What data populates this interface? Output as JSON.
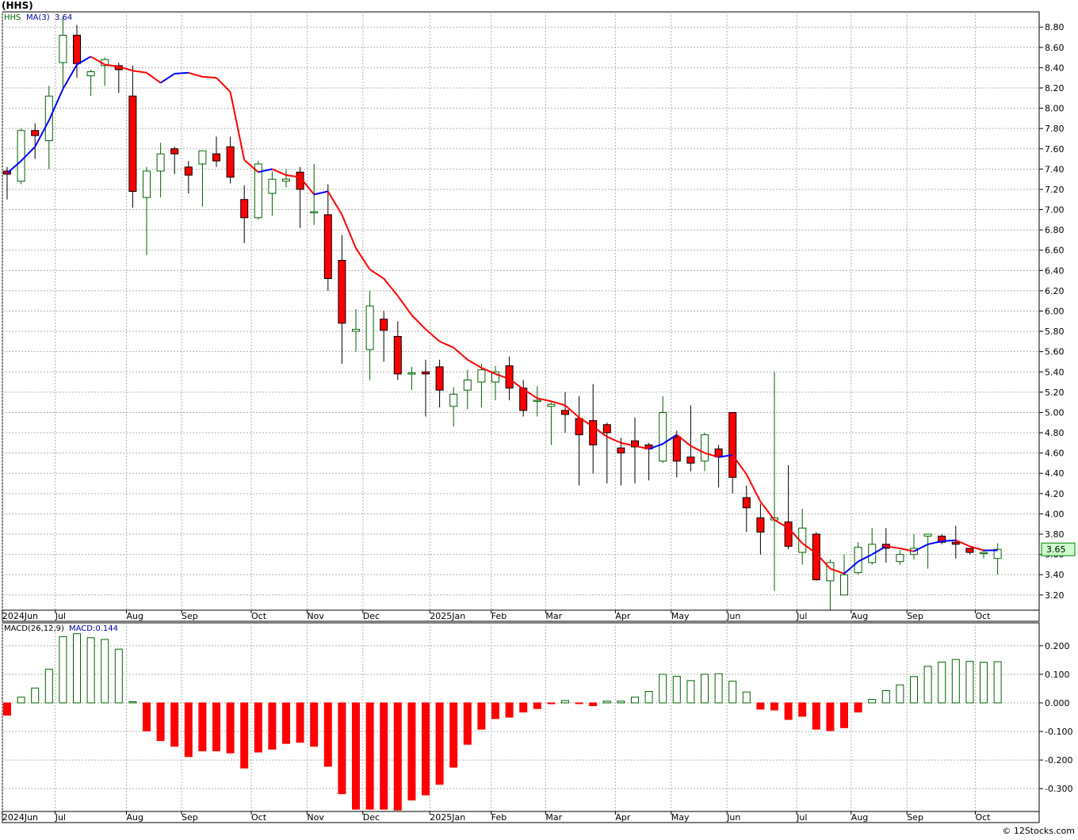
{
  "header": {
    "symbol_title": "(HHS)"
  },
  "footer": {
    "credit": "© 12Stocks.com"
  },
  "colors": {
    "up": "#006400",
    "down": "#ff0000",
    "ma_up": "#0000ff",
    "ma_down": "#ff0000",
    "grid": "#b0b0b0",
    "price_box": "#ccffcc"
  },
  "chart_data": [
    {
      "type": "candlestick",
      "legend": {
        "symbol": "HHS",
        "ma_label": "MA(3)",
        "ma_value": "3.64"
      },
      "last_price_label": "3.65",
      "ylim": [
        3.05,
        8.95
      ],
      "y_ticks": [
        3.2,
        3.4,
        3.6,
        3.8,
        4.0,
        4.2,
        4.4,
        4.6,
        4.8,
        5.0,
        5.2,
        5.4,
        5.6,
        5.8,
        6.0,
        6.2,
        6.4,
        6.6,
        6.8,
        7.0,
        7.2,
        7.4,
        7.6,
        7.8,
        8.0,
        8.2,
        8.4,
        8.6,
        8.8
      ],
      "x_labels": [
        {
          "label": "2024Jun",
          "index": -0.35
        },
        {
          "label": "Jul",
          "index": 3.45
        },
        {
          "label": "Aug",
          "index": 8.55
        },
        {
          "label": "Sep",
          "index": 12.5
        },
        {
          "label": "Oct",
          "index": 17.5
        },
        {
          "label": "Nov",
          "index": 21.5
        },
        {
          "label": "Dec",
          "index": 25.5
        },
        {
          "label": "2025Jan",
          "index": 30.3
        },
        {
          "label": "Feb",
          "index": 34.7
        },
        {
          "label": "Mar",
          "index": 38.6
        },
        {
          "label": "Apr",
          "index": 43.6
        },
        {
          "label": "May",
          "index": 47.6
        },
        {
          "label": "Jun",
          "index": 51.6
        },
        {
          "label": "Jul",
          "index": 56.6
        },
        {
          "label": "Aug",
          "index": 60.5
        },
        {
          "label": "Sep",
          "index": 64.5
        },
        {
          "label": "Oct",
          "index": 69.4
        }
      ],
      "ohlc": [
        [
          7.38,
          7.42,
          7.1,
          7.35
        ],
        [
          7.28,
          7.8,
          7.25,
          7.78
        ],
        [
          7.78,
          7.85,
          7.5,
          7.73
        ],
        [
          7.68,
          8.22,
          7.4,
          8.12
        ],
        [
          8.45,
          8.9,
          8.2,
          8.72
        ],
        [
          8.72,
          8.82,
          8.3,
          8.44
        ],
        [
          8.32,
          8.38,
          8.12,
          8.36
        ],
        [
          8.42,
          8.5,
          8.22,
          8.48
        ],
        [
          8.42,
          8.45,
          8.15,
          8.38
        ],
        [
          8.12,
          8.42,
          7.02,
          7.18
        ],
        [
          7.12,
          7.42,
          6.55,
          7.38
        ],
        [
          7.38,
          7.66,
          7.12,
          7.55
        ],
        [
          7.6,
          7.62,
          7.35,
          7.55
        ],
        [
          7.42,
          7.48,
          7.16,
          7.34
        ],
        [
          7.45,
          7.58,
          7.03,
          7.58
        ],
        [
          7.55,
          7.72,
          7.42,
          7.48
        ],
        [
          7.62,
          7.72,
          7.26,
          7.32
        ],
        [
          7.1,
          7.24,
          6.67,
          6.92
        ],
        [
          6.92,
          7.48,
          6.9,
          7.45
        ],
        [
          7.16,
          7.38,
          6.94,
          7.3
        ],
        [
          7.28,
          7.4,
          7.22,
          7.3
        ],
        [
          7.37,
          7.42,
          6.82,
          7.2
        ],
        [
          6.98,
          7.45,
          6.85,
          6.98
        ],
        [
          6.95,
          7.25,
          6.2,
          6.32
        ],
        [
          6.5,
          6.75,
          5.48,
          5.88
        ],
        [
          5.8,
          6.02,
          5.6,
          5.82
        ],
        [
          5.62,
          6.2,
          5.32,
          6.05
        ],
        [
          5.92,
          6.0,
          5.5,
          5.81
        ],
        [
          5.75,
          5.9,
          5.32,
          5.38
        ],
        [
          5.38,
          5.45,
          5.22,
          5.39
        ],
        [
          5.4,
          5.52,
          4.96,
          5.38
        ],
        [
          5.45,
          5.52,
          5.05,
          5.22
        ],
        [
          5.06,
          5.25,
          4.86,
          5.18
        ],
        [
          5.22,
          5.42,
          5.03,
          5.32
        ],
        [
          5.3,
          5.48,
          5.05,
          5.42
        ],
        [
          5.3,
          5.46,
          5.12,
          5.4
        ],
        [
          5.46,
          5.55,
          5.12,
          5.24
        ],
        [
          5.24,
          5.32,
          4.96,
          5.02
        ],
        [
          5.12,
          5.26,
          4.96,
          5.12
        ],
        [
          5.06,
          5.1,
          4.68,
          5.08
        ],
        [
          5.02,
          5.2,
          4.8,
          4.98
        ],
        [
          4.94,
          5.16,
          4.28,
          4.78
        ],
        [
          4.92,
          5.28,
          4.4,
          4.68
        ],
        [
          4.88,
          4.9,
          4.3,
          4.8
        ],
        [
          4.65,
          4.75,
          4.28,
          4.6
        ],
        [
          4.72,
          4.95,
          4.3,
          4.66
        ],
        [
          4.68,
          4.7,
          4.33,
          4.64
        ],
        [
          4.52,
          5.16,
          4.5,
          5.0
        ],
        [
          4.76,
          4.82,
          4.36,
          4.52
        ],
        [
          4.56,
          5.07,
          4.42,
          4.5
        ],
        [
          4.52,
          4.8,
          4.42,
          4.78
        ],
        [
          4.64,
          4.68,
          4.26,
          4.56
        ],
        [
          5.0,
          5.0,
          4.2,
          4.36
        ],
        [
          4.16,
          4.28,
          3.82,
          4.06
        ],
        [
          3.96,
          4.1,
          3.6,
          3.82
        ],
        [
          3.94,
          5.4,
          3.24,
          3.96
        ],
        [
          3.92,
          4.48,
          3.65,
          3.68
        ],
        [
          3.62,
          4.05,
          3.5,
          3.86
        ],
        [
          3.8,
          3.82,
          3.34,
          3.35
        ],
        [
          3.34,
          3.55,
          3.05,
          3.52
        ],
        [
          3.2,
          3.6,
          3.2,
          3.4
        ],
        [
          3.42,
          3.72,
          3.4,
          3.67
        ],
        [
          3.52,
          3.86,
          3.5,
          3.7
        ],
        [
          3.7,
          3.86,
          3.52,
          3.66
        ],
        [
          3.53,
          3.64,
          3.5,
          3.6
        ],
        [
          3.6,
          3.8,
          3.55,
          3.66
        ],
        [
          3.78,
          3.8,
          3.46,
          3.8
        ],
        [
          3.78,
          3.8,
          3.7,
          3.72
        ],
        [
          3.72,
          3.88,
          3.56,
          3.7
        ],
        [
          3.66,
          3.66,
          3.6,
          3.62
        ],
        [
          3.62,
          3.64,
          3.56,
          3.62
        ],
        [
          3.56,
          3.71,
          3.4,
          3.65
        ]
      ],
      "ma3": [
        7.36,
        7.48,
        7.62,
        7.88,
        8.19,
        8.43,
        8.51,
        8.43,
        8.41,
        8.37,
        8.35,
        8.25,
        8.34,
        8.35,
        8.31,
        8.3,
        8.16,
        7.49,
        7.37,
        7.4,
        7.34,
        7.32,
        7.15,
        7.18,
        6.95,
        6.62,
        6.41,
        6.32,
        6.15,
        5.96,
        5.82,
        5.7,
        5.64,
        5.52,
        5.44,
        5.38,
        5.33,
        5.23,
        5.14,
        5.11,
        5.07,
        4.95,
        4.86,
        4.76,
        4.7,
        4.67,
        4.64,
        4.69,
        4.78,
        4.67,
        4.6,
        4.56,
        4.58,
        4.39,
        4.12,
        3.94,
        3.86,
        3.71,
        3.61,
        3.46,
        3.41,
        3.53,
        3.6,
        3.68,
        3.66,
        3.63,
        3.7,
        3.73,
        3.74,
        3.68,
        3.64,
        3.64
      ]
    },
    {
      "type": "bar",
      "legend": {
        "label": "MACD(26,12,9)",
        "value_label": "MACD:0.144"
      },
      "ylim": [
        -0.38,
        0.28
      ],
      "y_ticks": [
        -0.3,
        -0.2,
        -0.1,
        0.0,
        0.1,
        0.2
      ],
      "values": [
        -0.043,
        0.02,
        0.052,
        0.118,
        0.232,
        0.242,
        0.228,
        0.222,
        0.188,
        0.004,
        -0.098,
        -0.132,
        -0.152,
        -0.188,
        -0.168,
        -0.168,
        -0.175,
        -0.228,
        -0.172,
        -0.162,
        -0.142,
        -0.138,
        -0.152,
        -0.222,
        -0.318,
        -0.372,
        -0.372,
        -0.372,
        -0.375,
        -0.34,
        -0.322,
        -0.285,
        -0.225,
        -0.145,
        -0.092,
        -0.055,
        -0.05,
        -0.032,
        -0.02,
        -0.003,
        0.008,
        -0.002,
        -0.01,
        0.006,
        0.006,
        0.02,
        0.04,
        0.1,
        0.093,
        0.078,
        0.1,
        0.102,
        0.076,
        0.038,
        -0.022,
        -0.025,
        -0.058,
        -0.047,
        -0.092,
        -0.097,
        -0.087,
        -0.032,
        0.012,
        0.043,
        0.063,
        0.092,
        0.128,
        0.143,
        0.152,
        0.145,
        0.142,
        0.144
      ]
    }
  ]
}
